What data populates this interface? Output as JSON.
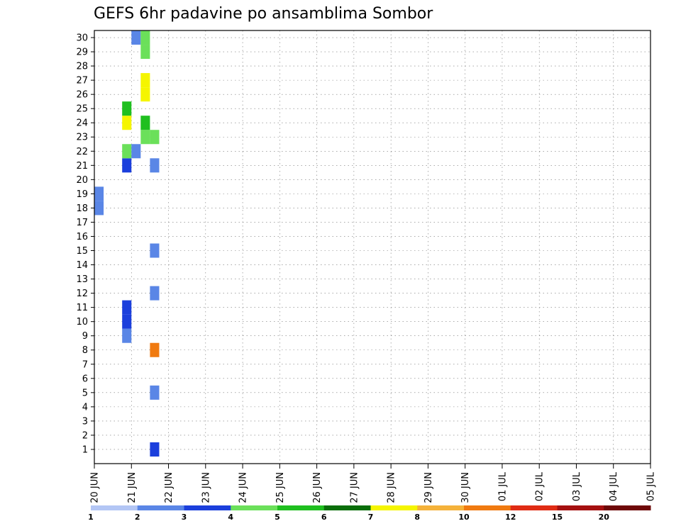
{
  "chart_data": {
    "type": "heatmap",
    "title": "GEFS 6hr padavine po ansamblima Sombor",
    "grid": true,
    "y_ticks": [
      "1",
      "2",
      "3",
      "4",
      "5",
      "6",
      "7",
      "8",
      "9",
      "10",
      "11",
      "12",
      "13",
      "14",
      "15",
      "16",
      "17",
      "18",
      "19",
      "20",
      "21",
      "22",
      "23",
      "24",
      "25",
      "26",
      "27",
      "28",
      "29",
      "30"
    ],
    "x_ticks": [
      "20 JUN",
      "21 JUN",
      "22 JUN",
      "23 JUN",
      "24 JUN",
      "25 JUN",
      "26 JUN",
      "27 JUN",
      "28 JUN",
      "29 JUN",
      "30 JUN",
      "01 JUL",
      "02 JUL",
      "03 JUL",
      "04 JUL",
      "05 JUL"
    ],
    "colorbar": {
      "labels": [
        "1",
        "2",
        "3",
        "4",
        "5",
        "6",
        "7",
        "8",
        "10",
        "12",
        "15",
        "20"
      ],
      "colors": [
        "#b3c6f5",
        "#5a86e6",
        "#1b3fdc",
        "#6be05a",
        "#1fbf1f",
        "#0a6e0a",
        "#f5f500",
        "#f5b23a",
        "#f07a10",
        "#e02c14",
        "#a51010",
        "#6e0808"
      ]
    },
    "cells": [
      {
        "x": 0,
        "m": 18,
        "c": 1
      },
      {
        "x": 0,
        "m": 19,
        "c": 1
      },
      {
        "x": 3,
        "m": 9,
        "c": 1
      },
      {
        "x": 3,
        "m": 10,
        "c": 2
      },
      {
        "x": 3,
        "m": 11,
        "c": 2
      },
      {
        "x": 3,
        "m": 21,
        "c": 2
      },
      {
        "x": 3,
        "m": 22,
        "c": 3
      },
      {
        "x": 3,
        "m": 24,
        "c": 6
      },
      {
        "x": 3,
        "m": 25,
        "c": 4
      },
      {
        "x": 4,
        "m": 22,
        "c": 1
      },
      {
        "x": 4,
        "m": 30,
        "c": 1
      },
      {
        "x": 5,
        "m": 23,
        "c": 3
      },
      {
        "x": 5,
        "m": 24,
        "c": 4
      },
      {
        "x": 5,
        "m": 26,
        "c": 6
      },
      {
        "x": 5,
        "m": 27,
        "c": 6
      },
      {
        "x": 5,
        "m": 29,
        "c": 3
      },
      {
        "x": 5,
        "m": 30,
        "c": 3
      },
      {
        "x": 6,
        "m": 1,
        "c": 2
      },
      {
        "x": 6,
        "m": 5,
        "c": 1
      },
      {
        "x": 6,
        "m": 8,
        "c": 8
      },
      {
        "x": 6,
        "m": 12,
        "c": 1
      },
      {
        "x": 6,
        "m": 15,
        "c": 1
      },
      {
        "x": 6,
        "m": 21,
        "c": 1
      },
      {
        "x": 6,
        "m": 23,
        "c": 3
      }
    ]
  }
}
